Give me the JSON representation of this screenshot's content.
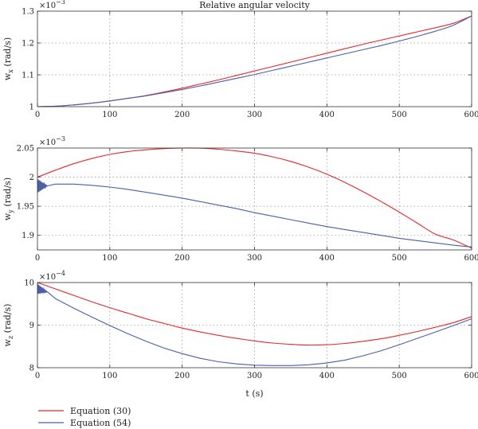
{
  "chart_data": [
    {
      "type": "line",
      "title": "Relative angular velocity",
      "ylabel": "w",
      "ylabel_sub": "x",
      "ylabel_unit": " (rad/s)",
      "multiplier": "×10",
      "multiplier_exp": "−3",
      "xlim": [
        0,
        600
      ],
      "ylim": [
        1.0,
        1.3
      ],
      "xticks": [
        "0",
        "100",
        "200",
        "300",
        "400",
        "500",
        "600"
      ],
      "yticks": [
        {
          "v": 1.0,
          "label": "1"
        },
        {
          "v": 1.1,
          "label": "1.1"
        },
        {
          "v": 1.2,
          "label": "1.2"
        },
        {
          "v": 1.3,
          "label": "1.3"
        }
      ],
      "grid": true,
      "series": [
        {
          "name": "Equation (30)",
          "color": "#e8262b",
          "x": [
            0,
            25,
            50,
            75,
            100,
            125,
            150,
            175,
            200,
            225,
            250,
            275,
            300,
            325,
            350,
            375,
            400,
            425,
            450,
            475,
            500,
            525,
            550,
            575,
            600
          ],
          "y": [
            1.0,
            1.0015,
            1.0055,
            1.011,
            1.018,
            1.026,
            1.035,
            1.046,
            1.058,
            1.071,
            1.084,
            1.098,
            1.112,
            1.126,
            1.14,
            1.154,
            1.168,
            1.182,
            1.196,
            1.209,
            1.222,
            1.235,
            1.248,
            1.262,
            1.285
          ]
        },
        {
          "name": "Equation (54)",
          "color": "#4a5fa8",
          "x": [
            0,
            25,
            50,
            75,
            100,
            125,
            150,
            175,
            200,
            225,
            250,
            275,
            300,
            325,
            350,
            375,
            400,
            425,
            450,
            475,
            500,
            525,
            550,
            575,
            600
          ],
          "y": [
            1.0,
            1.0015,
            1.0055,
            1.011,
            1.018,
            1.026,
            1.034,
            1.044,
            1.054,
            1.065,
            1.077,
            1.089,
            1.101,
            1.114,
            1.127,
            1.14,
            1.153,
            1.166,
            1.179,
            1.192,
            1.206,
            1.221,
            1.237,
            1.256,
            1.285
          ]
        }
      ]
    },
    {
      "type": "line",
      "ylabel": "w",
      "ylabel_sub": "y",
      "ylabel_unit": " (rad/s)",
      "multiplier": "×10",
      "multiplier_exp": "−3",
      "xlim": [
        0,
        600
      ],
      "ylim": [
        1.875,
        2.05
      ],
      "xticks": [
        "0",
        "100",
        "200",
        "300",
        "400",
        "500",
        "600"
      ],
      "yticks": [
        {
          "v": 1.9,
          "label": "1.9"
        },
        {
          "v": 1.95,
          "label": "1.95"
        },
        {
          "v": 2.0,
          "label": "2"
        },
        {
          "v": 2.05,
          "label": "2.05"
        }
      ],
      "grid": true,
      "series": [
        {
          "name": "Equation (30)",
          "color": "#e8262b",
          "x": [
            0,
            25,
            50,
            75,
            100,
            125,
            150,
            175,
            200,
            225,
            250,
            275,
            300,
            325,
            350,
            375,
            400,
            425,
            450,
            475,
            500,
            525,
            550,
            575,
            600
          ],
          "y": [
            2.0,
            2.012,
            2.023,
            2.032,
            2.039,
            2.044,
            2.047,
            2.049,
            2.05,
            2.0498,
            2.048,
            2.045,
            2.041,
            2.035,
            2.027,
            2.017,
            2.005,
            1.991,
            1.975,
            1.958,
            1.94,
            1.921,
            1.902,
            1.892,
            1.878
          ]
        },
        {
          "name": "Equation (54)",
          "color": "#4a5fa8",
          "oscillation": {
            "x_end": 14,
            "amplitude": 0.012,
            "periods": 9
          },
          "x": [
            0,
            14,
            25,
            50,
            75,
            100,
            125,
            150,
            175,
            200,
            225,
            250,
            275,
            300,
            325,
            350,
            375,
            400,
            425,
            450,
            475,
            500,
            525,
            550,
            575,
            600
          ],
          "y": [
            1.985,
            1.985,
            1.988,
            1.988,
            1.986,
            1.983,
            1.979,
            1.974,
            1.969,
            1.964,
            1.958,
            1.952,
            1.946,
            1.939,
            1.933,
            1.927,
            1.921,
            1.915,
            1.91,
            1.905,
            1.9,
            1.895,
            1.891,
            1.887,
            1.883,
            1.88
          ]
        }
      ]
    },
    {
      "type": "line",
      "ylabel": "w",
      "ylabel_sub": "z",
      "ylabel_unit": " (rad/s)",
      "xlabel": "t (s)",
      "multiplier": "×10",
      "multiplier_exp": "−4",
      "xlim": [
        0,
        600
      ],
      "ylim": [
        8.0,
        10.0
      ],
      "xticks": [
        "0",
        "100",
        "200",
        "300",
        "400",
        "500",
        "600"
      ],
      "yticks": [
        {
          "v": 8,
          "label": "8"
        },
        {
          "v": 9,
          "label": "9"
        },
        {
          "v": 10,
          "label": "10"
        }
      ],
      "grid": true,
      "series": [
        {
          "name": "Equation (30)",
          "color": "#e8262b",
          "x": [
            0,
            25,
            50,
            75,
            100,
            125,
            150,
            175,
            200,
            225,
            250,
            275,
            300,
            325,
            350,
            375,
            400,
            425,
            450,
            475,
            500,
            525,
            550,
            575,
            600
          ],
          "y": [
            10.0,
            9.85,
            9.7,
            9.55,
            9.41,
            9.28,
            9.15,
            9.04,
            8.93,
            8.84,
            8.76,
            8.69,
            8.63,
            8.58,
            8.55,
            8.53,
            8.54,
            8.57,
            8.62,
            8.68,
            8.76,
            8.85,
            8.95,
            9.06,
            9.2
          ]
        },
        {
          "name": "Equation (54)",
          "color": "#4a5fa8",
          "oscillation": {
            "x_end": 14,
            "amplitude": 0.12,
            "periods": 9
          },
          "x": [
            0,
            14,
            25,
            50,
            75,
            100,
            125,
            150,
            175,
            200,
            225,
            250,
            275,
            300,
            325,
            350,
            375,
            400,
            425,
            450,
            475,
            500,
            525,
            550,
            575,
            600
          ],
          "y": [
            9.85,
            9.78,
            9.62,
            9.4,
            9.19,
            8.99,
            8.8,
            8.62,
            8.46,
            8.33,
            8.22,
            8.14,
            8.09,
            8.06,
            8.05,
            8.05,
            8.07,
            8.11,
            8.18,
            8.28,
            8.4,
            8.54,
            8.69,
            8.84,
            8.99,
            9.15
          ]
        }
      ]
    }
  ],
  "legend": [
    {
      "label": "Equation (30)",
      "color": "#e8262b"
    },
    {
      "label": "Equation (54)",
      "color": "#4a5fa8"
    }
  ]
}
